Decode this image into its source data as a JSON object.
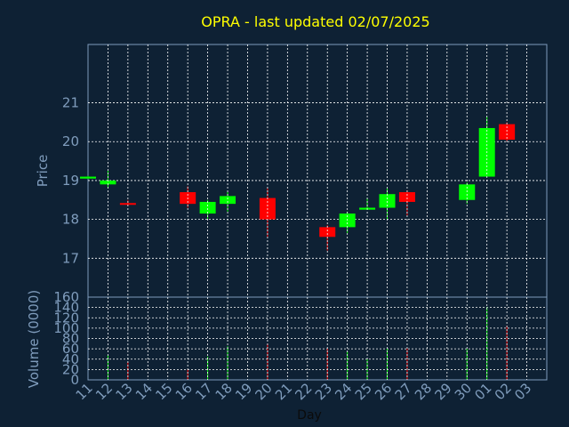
{
  "chart_data": {
    "type": "candlestick",
    "title": "OPRA - last updated 02/07/2025",
    "xlabel": "Day",
    "price_axis": {
      "label": "Price",
      "ylim": [
        16,
        22.5
      ],
      "ticks": [
        "17",
        "18",
        "19",
        "20",
        "21"
      ]
    },
    "volume_axis": {
      "label": "Volume (0000)",
      "ylim": [
        0,
        160
      ],
      "ticks": [
        "0",
        "20",
        "40",
        "60",
        "80",
        "100",
        "120",
        "140",
        "160"
      ]
    },
    "grid": true,
    "colors": {
      "up": "#00ff00",
      "down": "#ff0000",
      "background": "#0e2134",
      "grid": "#ffffff",
      "axis": "#7f9cbc",
      "title": "#ffff00"
    },
    "x_ticks": [
      "11",
      "12",
      "13",
      "14",
      "15",
      "16",
      "17",
      "18",
      "19",
      "20",
      "21",
      "22",
      "23",
      "24",
      "25",
      "26",
      "27",
      "28",
      "29",
      "30",
      "01",
      "02",
      "03"
    ],
    "candles": [
      {
        "day": "11",
        "open": 19.05,
        "close": 19.1,
        "high": 19.12,
        "low": 19.04,
        "volume": 0
      },
      {
        "day": "12",
        "open": 18.9,
        "close": 19.0,
        "high": 19.25,
        "low": 18.8,
        "volume": 48
      },
      {
        "day": "13",
        "open": 18.42,
        "close": 18.4,
        "high": 18.5,
        "low": 18.35,
        "volume": 35
      },
      {
        "day": "16",
        "open": 18.7,
        "close": 18.4,
        "high": 18.85,
        "low": 18.3,
        "volume": 20
      },
      {
        "day": "17",
        "open": 18.15,
        "close": 18.45,
        "high": 18.5,
        "low": 18.0,
        "volume": 45
      },
      {
        "day": "18",
        "open": 18.4,
        "close": 18.6,
        "high": 18.7,
        "low": 18.2,
        "volume": 65
      },
      {
        "day": "20",
        "open": 18.55,
        "close": 18.0,
        "high": 18.8,
        "low": 17.55,
        "volume": 70
      },
      {
        "day": "23",
        "open": 17.8,
        "close": 17.55,
        "high": 17.85,
        "low": 17.2,
        "volume": 60
      },
      {
        "day": "24",
        "open": 17.8,
        "close": 18.15,
        "high": 18.2,
        "low": 17.65,
        "volume": 55
      },
      {
        "day": "25",
        "open": 18.25,
        "close": 18.3,
        "high": 18.55,
        "low": 18.25,
        "volume": 40
      },
      {
        "day": "26",
        "open": 18.3,
        "close": 18.65,
        "high": 18.8,
        "low": 18.0,
        "volume": 60
      },
      {
        "day": "27",
        "open": 18.7,
        "close": 18.45,
        "high": 18.75,
        "low": 18.1,
        "volume": 62
      },
      {
        "day": "30",
        "open": 18.5,
        "close": 18.9,
        "high": 18.95,
        "low": 18.4,
        "volume": 60
      },
      {
        "day": "01",
        "open": 19.1,
        "close": 20.35,
        "high": 20.65,
        "low": 19.1,
        "volume": 140
      },
      {
        "day": "02",
        "open": 20.45,
        "close": 20.05,
        "high": 20.5,
        "low": 20.0,
        "volume": 105
      }
    ]
  }
}
